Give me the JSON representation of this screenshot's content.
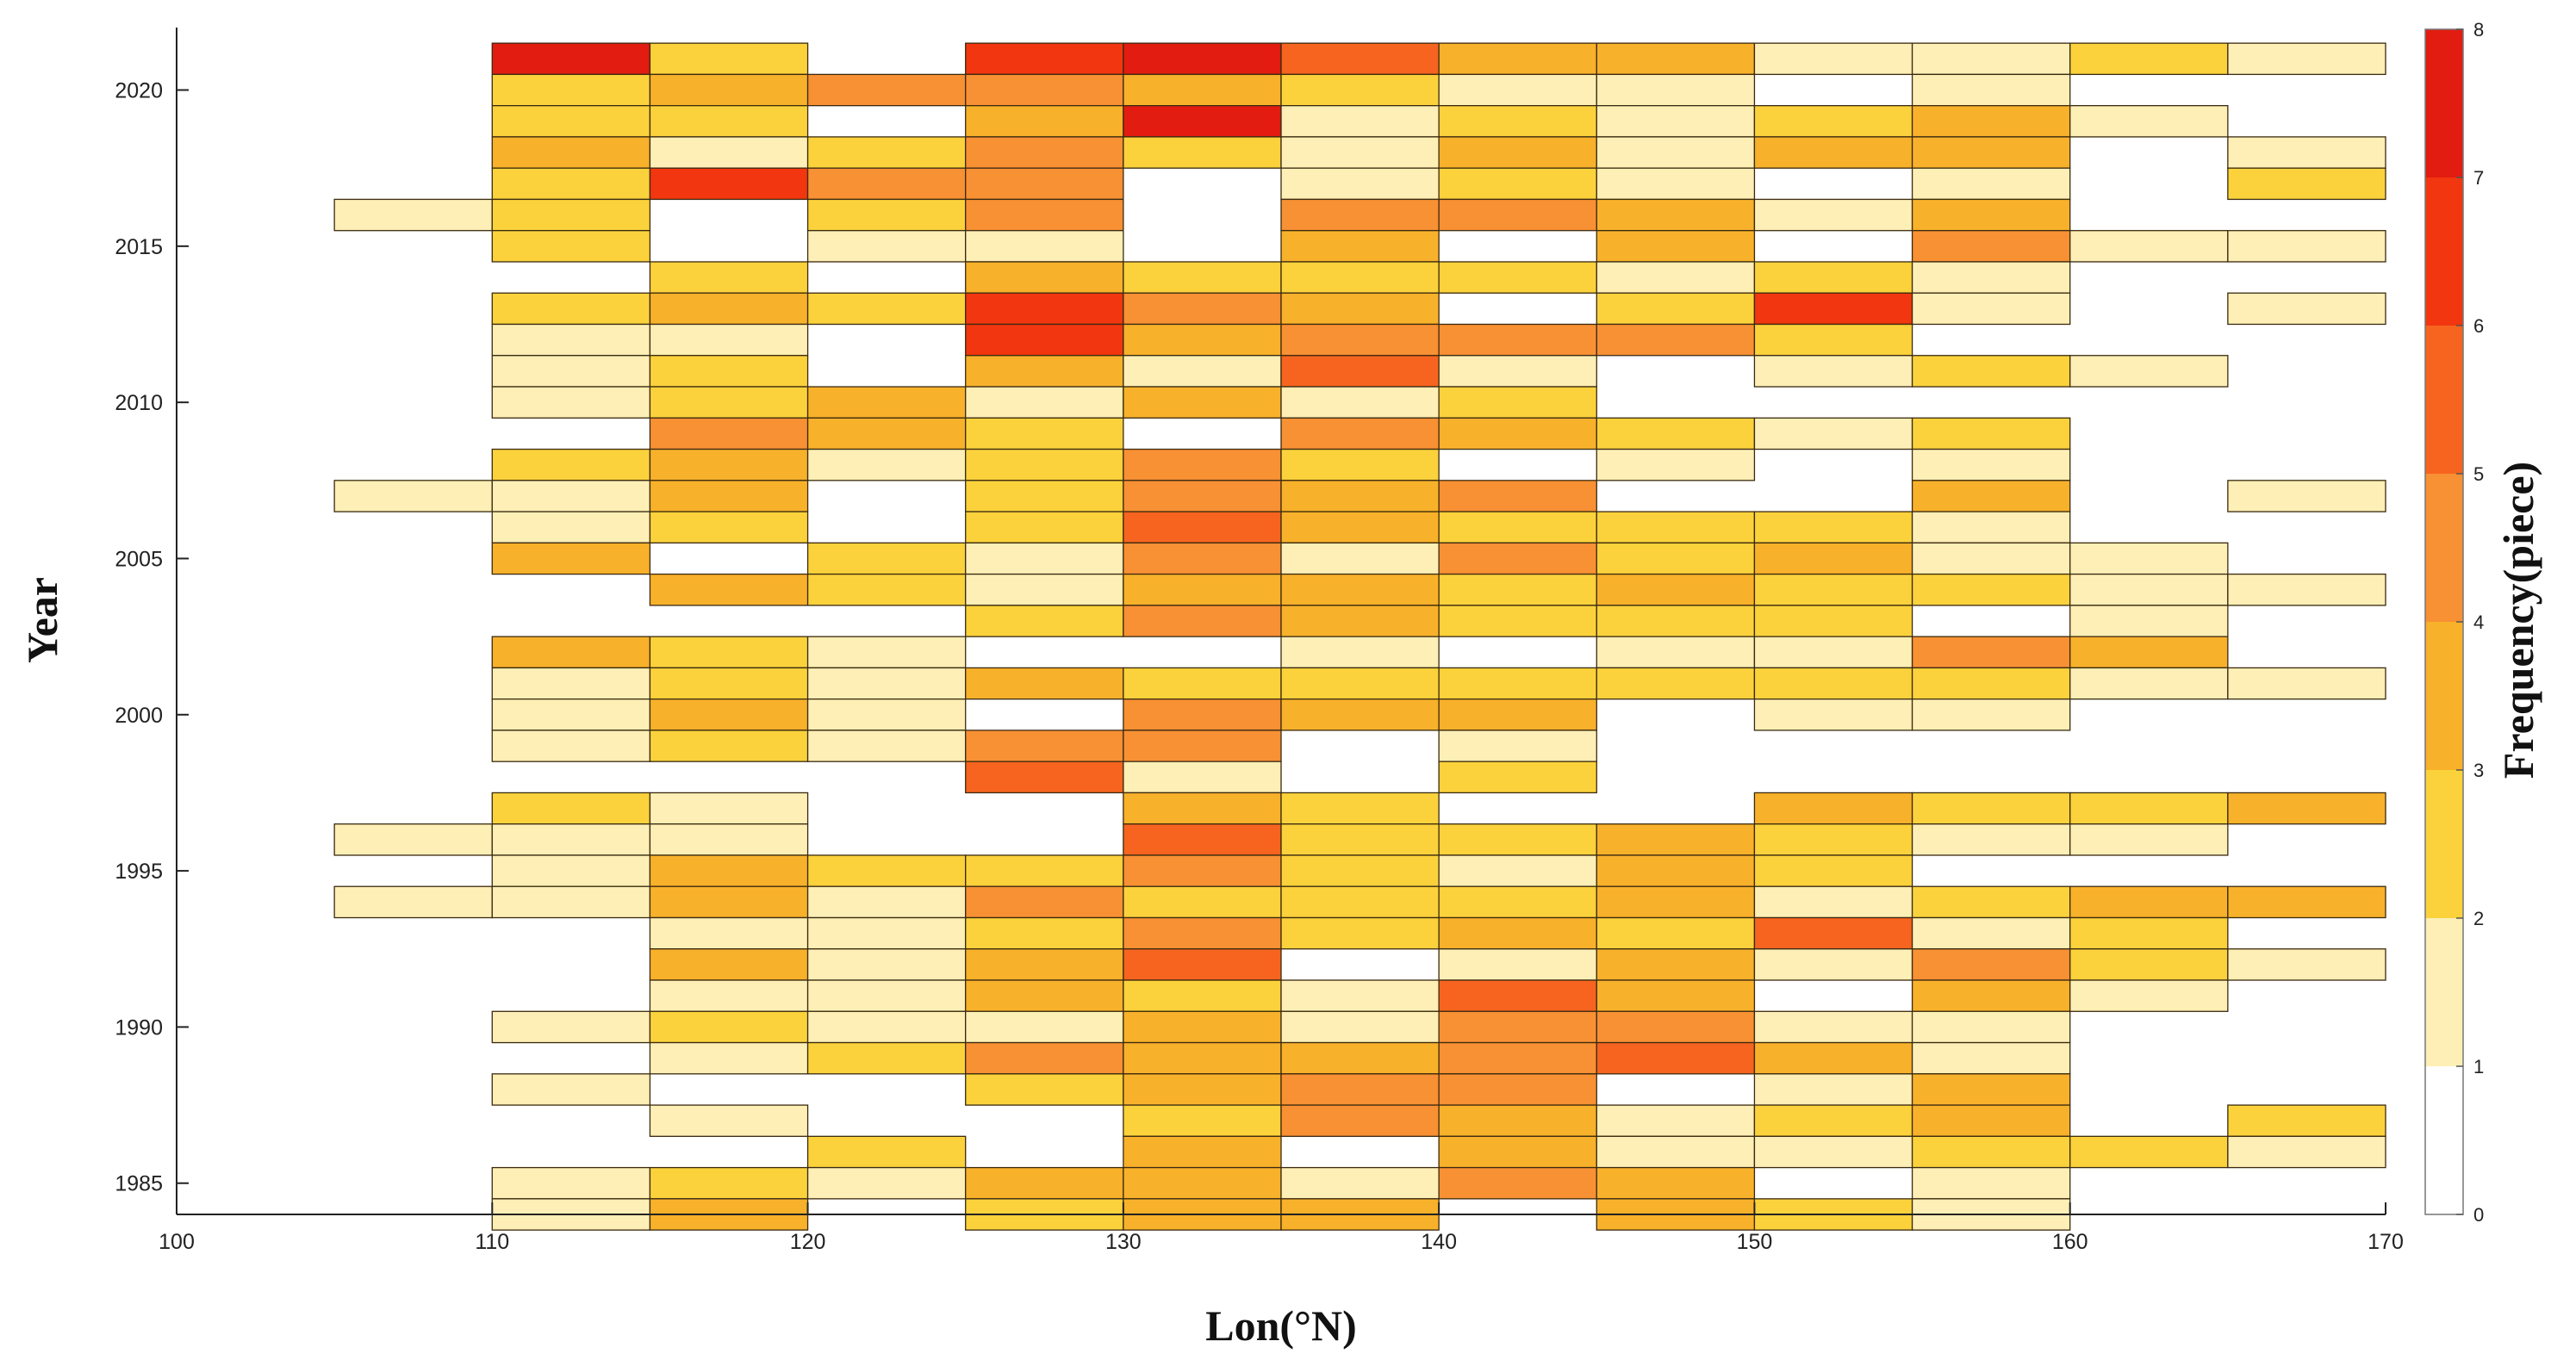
{
  "chart_data": {
    "type": "heatmap",
    "title": "",
    "xlabel": "Lon(°N)",
    "ylabel": "Year",
    "colorbar_label": "Frequency(piece)",
    "xlim": [
      100,
      170
    ],
    "ylim": [
      1984,
      2022
    ],
    "x_ticks": [
      100,
      110,
      120,
      130,
      140,
      150,
      160,
      170
    ],
    "y_ticks": [
      1985,
      1990,
      1995,
      2000,
      2005,
      2010,
      2015,
      2020
    ],
    "color_ticks": [
      0,
      1,
      2,
      3,
      4,
      5,
      6,
      7,
      8
    ],
    "color_scale": [
      "#ffffff",
      "#fdefb5",
      "#fbd23b",
      "#f8b12a",
      "#f89034",
      "#f6641f",
      "#f2360f",
      "#e21c10"
    ],
    "x_bins": [
      105,
      110,
      115,
      120,
      125,
      130,
      135,
      140,
      145,
      150,
      155,
      160,
      165
    ],
    "years": [
      2021,
      2020,
      2019,
      2018,
      2017,
      2016,
      2015,
      2014,
      2013,
      2012,
      2011,
      2010,
      2009,
      2008,
      2007,
      2006,
      2005,
      2004,
      2003,
      2002,
      2001,
      2000,
      1999,
      1998,
      1997,
      1996,
      1995,
      1994,
      1993,
      1992,
      1991,
      1990,
      1989,
      1988,
      1987,
      1986,
      1985,
      1984
    ],
    "values": [
      [
        0,
        8,
        2,
        0,
        6,
        8,
        5,
        3,
        3,
        1,
        1,
        2,
        1
      ],
      [
        0,
        2,
        3,
        4,
        4,
        3,
        2,
        1,
        1,
        0,
        1,
        0,
        0
      ],
      [
        0,
        2,
        2,
        0,
        3,
        7,
        1,
        2,
        1,
        2,
        3,
        1,
        0
      ],
      [
        0,
        3,
        1,
        2,
        4,
        2,
        1,
        3,
        1,
        3,
        3,
        0,
        1
      ],
      [
        0,
        2,
        6,
        4,
        4,
        0,
        1,
        2,
        1,
        0,
        1,
        0,
        2
      ],
      [
        1,
        2,
        0,
        2,
        4,
        0,
        4,
        4,
        3,
        1,
        3,
        0,
        0
      ],
      [
        0,
        2,
        0,
        1,
        1,
        0,
        3,
        0,
        3,
        0,
        4,
        1,
        1
      ],
      [
        0,
        0,
        2,
        0,
        3,
        2,
        2,
        2,
        1,
        2,
        1,
        0,
        0
      ],
      [
        0,
        2,
        3,
        2,
        6,
        4,
        3,
        0,
        2,
        6,
        1,
        0,
        1
      ],
      [
        0,
        1,
        1,
        0,
        6,
        3,
        4,
        4,
        4,
        2,
        0,
        0,
        0
      ],
      [
        0,
        1,
        2,
        0,
        3,
        1,
        5,
        1,
        0,
        1,
        2,
        1,
        0
      ],
      [
        0,
        1,
        2,
        3,
        1,
        3,
        1,
        2,
        0,
        0,
        0,
        0,
        0
      ],
      [
        0,
        0,
        4,
        3,
        2,
        0,
        4,
        3,
        2,
        1,
        2,
        0,
        0
      ],
      [
        0,
        2,
        3,
        1,
        2,
        4,
        2,
        0,
        1,
        0,
        1,
        0,
        0
      ],
      [
        1,
        1,
        3,
        0,
        2,
        4,
        3,
        4,
        0,
        0,
        3,
        0,
        1
      ],
      [
        0,
        1,
        2,
        0,
        2,
        5,
        3,
        2,
        2,
        2,
        1,
        0,
        0
      ],
      [
        0,
        3,
        0,
        2,
        1,
        4,
        1,
        4,
        2,
        3,
        1,
        1,
        0
      ],
      [
        0,
        0,
        3,
        2,
        1,
        3,
        3,
        2,
        3,
        2,
        2,
        1,
        1
      ],
      [
        0,
        0,
        0,
        0,
        2,
        4,
        3,
        2,
        2,
        2,
        0,
        1,
        0
      ],
      [
        0,
        3,
        2,
        1,
        0,
        0,
        1,
        0,
        1,
        1,
        4,
        3,
        0
      ],
      [
        0,
        1,
        2,
        1,
        3,
        2,
        2,
        2,
        2,
        2,
        2,
        1,
        1
      ],
      [
        0,
        1,
        3,
        1,
        0,
        4,
        3,
        3,
        0,
        1,
        1,
        0,
        0
      ],
      [
        0,
        1,
        2,
        1,
        4,
        4,
        0,
        1,
        0,
        0,
        0,
        0,
        0
      ],
      [
        0,
        0,
        0,
        0,
        5,
        1,
        0,
        2,
        0,
        0,
        0,
        0,
        0
      ],
      [
        0,
        2,
        1,
        0,
        0,
        3,
        2,
        0,
        0,
        3,
        2,
        2,
        3
      ],
      [
        1,
        1,
        1,
        0,
        0,
        5,
        2,
        2,
        3,
        2,
        1,
        1,
        0
      ],
      [
        0,
        1,
        3,
        2,
        2,
        4,
        2,
        1,
        3,
        2,
        0,
        0,
        0
      ],
      [
        1,
        1,
        3,
        1,
        4,
        2,
        2,
        2,
        3,
        1,
        2,
        3,
        3
      ],
      [
        0,
        0,
        1,
        1,
        2,
        4,
        2,
        3,
        2,
        5,
        1,
        2,
        0
      ],
      [
        0,
        0,
        3,
        1,
        3,
        5,
        0,
        1,
        3,
        1,
        4,
        2,
        1
      ],
      [
        0,
        0,
        1,
        1,
        3,
        2,
        1,
        5,
        3,
        0,
        3,
        1,
        0
      ],
      [
        0,
        1,
        2,
        1,
        1,
        3,
        1,
        4,
        4,
        1,
        1,
        0,
        0
      ],
      [
        0,
        0,
        1,
        2,
        4,
        3,
        3,
        4,
        5,
        3,
        1,
        0,
        0
      ],
      [
        0,
        1,
        0,
        0,
        2,
        3,
        4,
        4,
        0,
        1,
        3,
        0,
        0
      ],
      [
        0,
        0,
        1,
        0,
        0,
        2,
        4,
        3,
        1,
        2,
        3,
        0,
        2
      ],
      [
        0,
        0,
        0,
        2,
        0,
        3,
        0,
        3,
        1,
        1,
        2,
        2,
        1
      ],
      [
        0,
        1,
        2,
        1,
        3,
        3,
        1,
        4,
        3,
        0,
        1,
        0,
        0
      ],
      [
        0,
        1,
        3,
        0,
        2,
        3,
        3,
        0,
        3,
        2,
        1,
        0,
        0
      ]
    ]
  }
}
